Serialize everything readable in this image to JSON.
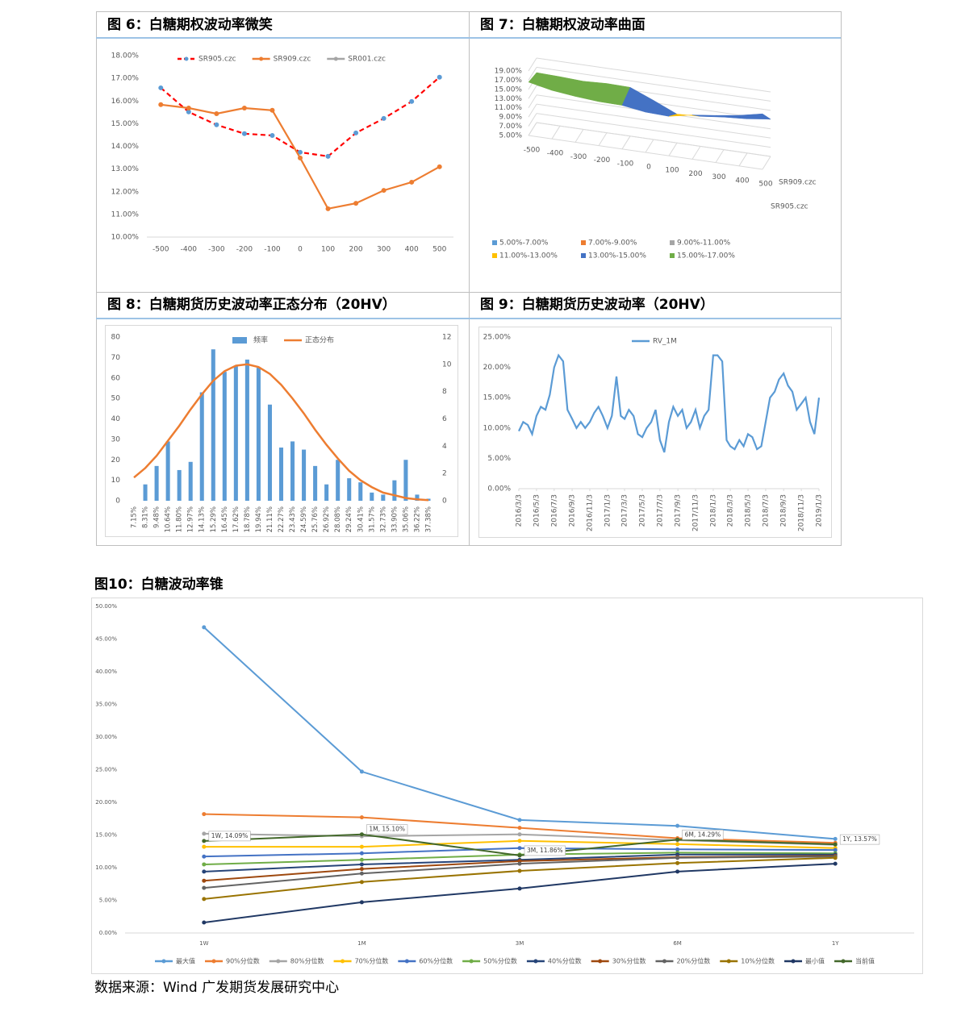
{
  "chart_data": [
    {
      "type": "line",
      "title": "图 6：白糖期权波动率微笑",
      "categories": [
        "-500",
        "-400",
        "-300",
        "-200",
        "-100",
        "0",
        "100",
        "200",
        "300",
        "400",
        "500"
      ],
      "ylim": [
        10,
        18
      ],
      "yticks": [
        {
          "value": 10,
          "label": "10.00%"
        },
        {
          "value": 11,
          "label": "11.00%"
        },
        {
          "value": 12,
          "label": "12.00%"
        },
        {
          "value": 13,
          "label": "13.00%"
        },
        {
          "value": 14,
          "label": "14.00%"
        },
        {
          "value": 15,
          "label": "15.00%"
        },
        {
          "value": 16,
          "label": "16.00%"
        },
        {
          "value": 17,
          "label": "17.00%"
        },
        {
          "value": 18,
          "label": "18.00%"
        }
      ],
      "grid": false,
      "markers": true,
      "legend": "top",
      "series": [
        {
          "name": "SR905.czc",
          "color": "#ff0000",
          "dash": true,
          "marker_color": "#5b9bd5",
          "values": [
            16.58,
            15.52,
            14.95,
            14.56,
            14.48,
            13.74,
            13.56,
            14.59,
            15.23,
            15.98,
            17.05
          ]
        },
        {
          "name": "SR909.czc",
          "color": "#ed7d31",
          "values": [
            15.84,
            15.69,
            15.44,
            15.69,
            15.59,
            13.49,
            11.25,
            11.49,
            12.06,
            12.42,
            13.1
          ]
        },
        {
          "name": "SR001.czc",
          "color": "#a5a5a5",
          "values": [
            null,
            null,
            null,
            null,
            null,
            null,
            null,
            null,
            null,
            null,
            null
          ]
        }
      ]
    },
    {
      "type": "surface",
      "title": "图 7：白糖期权波动率曲面",
      "categories": [
        "-500",
        "-400",
        "-300",
        "-200",
        "-100",
        "0",
        "100",
        "200",
        "300",
        "400",
        "500"
      ],
      "zlim": [
        5,
        19
      ],
      "zticks": [
        {
          "value": 5,
          "label": "5.00%"
        },
        {
          "value": 7,
          "label": "7.00%"
        },
        {
          "value": 9,
          "label": "9.00%"
        },
        {
          "value": 11,
          "label": "11.00%"
        },
        {
          "value": 13,
          "label": "13.00%"
        },
        {
          "value": 15,
          "label": "15.00%"
        },
        {
          "value": 17,
          "label": "17.00%"
        },
        {
          "value": 19,
          "label": "19.00%"
        }
      ],
      "series": [
        {
          "name": "SR909.czc",
          "values": [
            15.84,
            15.69,
            15.44,
            15.69,
            15.59,
            13.49,
            11.25,
            11.49,
            12.06,
            12.42,
            13.1
          ]
        },
        {
          "name": "SR905.czc",
          "values": [
            16.58,
            15.52,
            14.95,
            14.56,
            14.48,
            13.74,
            13.56,
            14.59,
            15.23,
            15.98,
            17.05
          ]
        }
      ],
      "bands": [
        {
          "label": "5.00%-7.00%",
          "color": "#5b9bd5"
        },
        {
          "label": "7.00%-9.00%",
          "color": "#ed7d31"
        },
        {
          "label": "9.00%-11.00%",
          "color": "#a5a5a5"
        },
        {
          "label": "11.00%-13.00%",
          "color": "#ffc000"
        },
        {
          "label": "13.00%-15.00%",
          "color": "#4472c4"
        },
        {
          "label": "15.00%-17.00%",
          "color": "#70ad47"
        }
      ]
    },
    {
      "type": "bar_line",
      "title": "图 8：白糖期货历史波动率正态分布（20HV）",
      "categories": [
        "7.15%",
        "8.31%",
        "9.48%",
        "10.64%",
        "11.80%",
        "12.97%",
        "14.13%",
        "15.29%",
        "16.45%",
        "17.62%",
        "18.78%",
        "19.94%",
        "21.11%",
        "22.27%",
        "23.43%",
        "24.59%",
        "25.76%",
        "26.92%",
        "28.08%",
        "29.24%",
        "30.41%",
        "31.57%",
        "32.73%",
        "33.90%",
        "35.06%",
        "36.22%",
        "37.38%"
      ],
      "ylim": [
        0,
        80
      ],
      "yticks": [
        0,
        10,
        20,
        30,
        40,
        50,
        60,
        70,
        80
      ],
      "y2lim": [
        0,
        12
      ],
      "y2ticks": [
        0,
        2,
        4,
        6,
        8,
        10,
        12
      ],
      "series": [
        {
          "name": "频率",
          "color": "#5b9bd5",
          "kind": "bar",
          "values": [
            0,
            8,
            17,
            29,
            15,
            19,
            53,
            74,
            63,
            66,
            69,
            65,
            47,
            26,
            29,
            25,
            17,
            8,
            20,
            11,
            9,
            4,
            3,
            10,
            20,
            3,
            1
          ]
        },
        {
          "name": "正态分布",
          "color": "#ed7d31",
          "axis": "y2",
          "values": [
            1.7,
            2.4,
            3.3,
            4.4,
            5.5,
            6.7,
            7.8,
            8.8,
            9.5,
            9.9,
            10.0,
            9.8,
            9.3,
            8.5,
            7.5,
            6.4,
            5.2,
            4.1,
            3.1,
            2.2,
            1.5,
            1.0,
            0.6,
            0.4,
            0.2,
            0.1,
            0.05
          ]
        }
      ]
    },
    {
      "type": "line",
      "title": "图 9：白糖期货历史波动率（20HV）",
      "x": [
        "2016/3/3",
        "2016/3/18",
        "2016/4/3",
        "2016/4/18",
        "2016/5/3",
        "2016/5/18",
        "2016/6/3",
        "2016/6/18",
        "2016/7/3",
        "2016/7/18",
        "2016/8/3",
        "2016/8/18",
        "2016/9/3",
        "2016/9/18",
        "2016/10/3",
        "2016/10/18",
        "2016/11/3",
        "2016/11/18",
        "2016/12/3",
        "2016/12/18",
        "2017/1/3",
        "2017/1/18",
        "2017/2/3",
        "2017/2/18",
        "2017/3/3",
        "2017/3/18",
        "2017/4/3",
        "2017/4/18",
        "2017/5/3",
        "2017/5/18",
        "2017/6/3",
        "2017/6/18",
        "2017/7/3",
        "2017/7/18",
        "2017/8/3",
        "2017/8/18",
        "2017/9/3",
        "2017/9/18",
        "2017/10/3",
        "2017/10/18",
        "2017/11/3",
        "2017/11/18",
        "2017/12/3",
        "2017/12/18",
        "2018/1/3",
        "2018/1/18",
        "2018/2/3",
        "2018/2/18",
        "2018/3/3",
        "2018/3/18",
        "2018/4/3",
        "2018/4/18",
        "2018/5/3",
        "2018/5/18",
        "2018/6/3",
        "2018/6/18",
        "2018/7/3",
        "2018/7/18",
        "2018/8/3",
        "2018/8/18",
        "2018/9/3",
        "2018/9/18",
        "2018/10/3",
        "2018/10/18",
        "2018/11/3",
        "2018/11/18",
        "2018/12/3",
        "2018/12/18",
        "2019/1/3"
      ],
      "xlim": [
        "2016/3/3",
        "2019/1/3"
      ],
      "xticks": [
        "2016/3/3",
        "2016/5/3",
        "2016/7/3",
        "2016/9/3",
        "2016/11/3",
        "2017/1/3",
        "2017/3/3",
        "2017/5/3",
        "2017/7/3",
        "2017/9/3",
        "2017/11/3",
        "2018/1/3",
        "2018/3/3",
        "2018/5/3",
        "2018/7/3",
        "2018/9/3",
        "2018/11/3",
        "2019/1/3"
      ],
      "ylim": [
        0,
        25
      ],
      "yticks": [
        {
          "value": 0,
          "label": "0.00%"
        },
        {
          "value": 5,
          "label": "5.00%"
        },
        {
          "value": 10,
          "label": "10.00%"
        },
        {
          "value": 15,
          "label": "15.00%"
        },
        {
          "value": 20,
          "label": "20.00%"
        },
        {
          "value": 25,
          "label": "25.00%"
        }
      ],
      "grid": false,
      "markers": false,
      "legend": "top",
      "series": [
        {
          "name": "RV_1M",
          "color": "#5b9bd5",
          "values": [
            9.5,
            11,
            10.5,
            9,
            12,
            13.5,
            13,
            15.5,
            20,
            22,
            21,
            13,
            11.5,
            10,
            11,
            10,
            11,
            12.5,
            13.5,
            12,
            10,
            12,
            18.5,
            12,
            11.5,
            13,
            12,
            9,
            8.5,
            10,
            11,
            13,
            8,
            6,
            11,
            13.5,
            12,
            13,
            10,
            11,
            13,
            10,
            12,
            13,
            22,
            22,
            21,
            8,
            7,
            6.5,
            8,
            7,
            9,
            8.5,
            6.5,
            7,
            11,
            15,
            16,
            18,
            19,
            17,
            16,
            13,
            14,
            15,
            11,
            9,
            15
          ]
        }
      ]
    },
    {
      "type": "line",
      "title": "图10：白糖波动率锥",
      "categories": [
        "1W",
        "1M",
        "3M",
        "6M",
        "1Y"
      ],
      "ylim": [
        0,
        50
      ],
      "yticks": [
        {
          "value": 0,
          "label": "0.00%"
        },
        {
          "value": 5,
          "label": "5.00%"
        },
        {
          "value": 10,
          "label": "10.00%"
        },
        {
          "value": 15,
          "label": "15.00%"
        },
        {
          "value": 20,
          "label": "20.00%"
        },
        {
          "value": 25,
          "label": "25.00%"
        },
        {
          "value": 30,
          "label": "30.00%"
        },
        {
          "value": 35,
          "label": "35.00%"
        },
        {
          "value": 40,
          "label": "40.00%"
        },
        {
          "value": 45,
          "label": "45.00%"
        },
        {
          "value": 50,
          "label": "50.00%"
        }
      ],
      "grid": false,
      "markers": true,
      "legend": "bottom",
      "series": [
        {
          "name": "最大值",
          "color": "#5b9bd5",
          "values": [
            46.8,
            24.7,
            17.3,
            16.4,
            14.4
          ]
        },
        {
          "name": "90%分位数",
          "color": "#ed7d31",
          "values": [
            18.2,
            17.7,
            16.1,
            14.5,
            13.8
          ]
        },
        {
          "name": "80%分位数",
          "color": "#a5a5a5",
          "values": [
            15.2,
            14.8,
            15.1,
            14.2,
            13.5
          ]
        },
        {
          "name": "70%分位数",
          "color": "#ffc000",
          "values": [
            13.2,
            13.2,
            14.1,
            13.6,
            13.0
          ]
        },
        {
          "name": "60%分位数",
          "color": "#4472c4",
          "values": [
            11.7,
            12.2,
            13.0,
            12.8,
            12.7
          ]
        },
        {
          "name": "50%分位数",
          "color": "#70ad47",
          "values": [
            10.5,
            11.2,
            12.0,
            12.3,
            12.2
          ]
        },
        {
          "name": "40%分位数",
          "color": "#264478",
          "values": [
            9.4,
            10.5,
            11.2,
            12.0,
            12.0
          ]
        },
        {
          "name": "30%分位数",
          "color": "#9e480e",
          "values": [
            8.0,
            9.8,
            11.0,
            11.6,
            11.8
          ]
        },
        {
          "name": "20%分位数",
          "color": "#636363",
          "values": [
            6.9,
            9.1,
            10.6,
            11.5,
            11.7
          ]
        },
        {
          "name": "10%分位数",
          "color": "#997300",
          "values": [
            5.2,
            7.8,
            9.5,
            10.7,
            11.5
          ]
        },
        {
          "name": "最小值",
          "color": "#203864",
          "values": [
            1.6,
            4.7,
            6.8,
            9.4,
            10.6
          ]
        },
        {
          "name": "当前值",
          "color": "#43682b",
          "values": [
            14.09,
            15.1,
            11.86,
            14.29,
            13.57
          ],
          "value_labels": [
            "1W, 14.09%",
            "1M, 15.10%",
            "3M, 11.86%",
            "6M, 14.29%",
            "1Y, 13.57%"
          ]
        }
      ]
    }
  ],
  "source": "数据来源：Wind 广发期货发展研究中心"
}
